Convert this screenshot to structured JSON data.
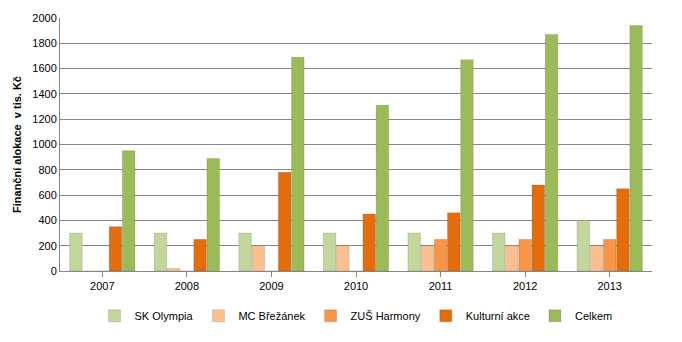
{
  "chart_data": {
    "type": "bar",
    "y_label": "Finanční alokace  v tis. Kč",
    "categories": [
      "2007",
      "2008",
      "2009",
      "2010",
      "2011",
      "2012",
      "2013"
    ],
    "series": [
      {
        "name": "SK Olympia",
        "color": "#c3d69b",
        "values": [
          300,
          300,
          300,
          300,
          300,
          300,
          400
        ]
      },
      {
        "name": "MC Břežánek",
        "color": "#fac090",
        "values": [
          0,
          20,
          200,
          200,
          200,
          200,
          200
        ]
      },
      {
        "name": "ZUŠ Harmony",
        "color": "#f79646",
        "values": [
          0,
          0,
          0,
          0,
          250,
          250,
          250
        ]
      },
      {
        "name": "Kulturní akce",
        "color": "#e46c0a",
        "values": [
          350,
          250,
          780,
          450,
          460,
          680,
          650
        ]
      },
      {
        "name": "Celkem",
        "color": "#9bbb59",
        "values": [
          950,
          890,
          1690,
          1310,
          1670,
          1870,
          1940
        ]
      }
    ],
    "ylim": [
      0,
      2000
    ],
    "yticks": [
      0,
      200,
      400,
      600,
      800,
      1000,
      1200,
      1400,
      1600,
      1800,
      2000
    ],
    "grid": true,
    "legend": "bottom"
  }
}
